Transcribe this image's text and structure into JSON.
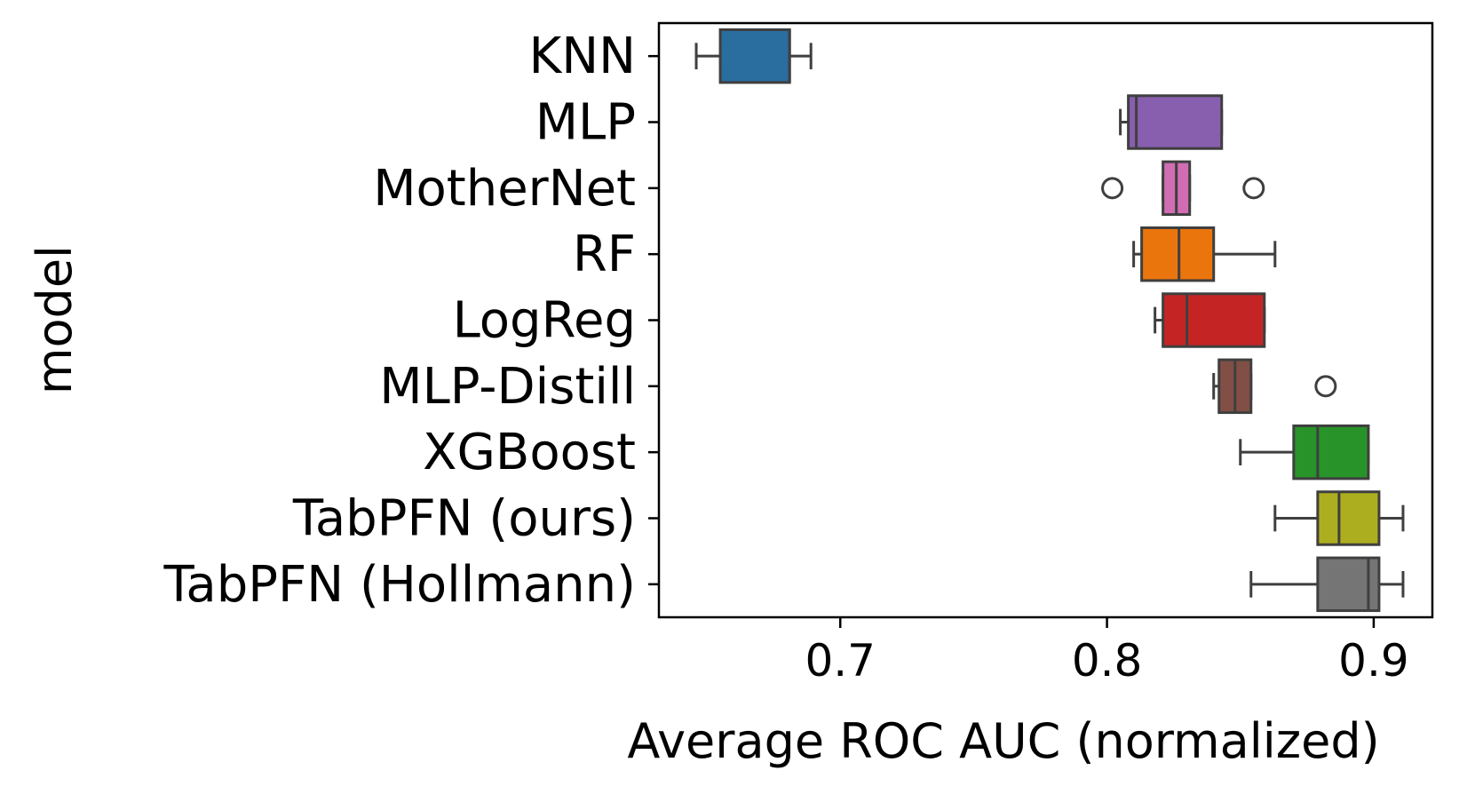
{
  "chart_data": {
    "type": "boxplot",
    "orientation": "horizontal",
    "xlabel": "Average ROC AUC (normalized)",
    "ylabel": "model",
    "xlim": [
      0.632,
      0.922
    ],
    "xticks": [
      0.7,
      0.8,
      0.9
    ],
    "xtick_labels": [
      "0.7",
      "0.8",
      "0.9"
    ],
    "grid": false,
    "categories": [
      "KNN",
      "MLP",
      "MotherNet",
      "RF",
      "LogReg",
      "MLP-Distill",
      "XGBoost",
      "TabPFN (ours)",
      "TabPFN (Hollmann)"
    ],
    "series": [
      {
        "label": "KNN",
        "color": "#2e76ad",
        "whisker_low": 0.646,
        "q1": 0.655,
        "median": 0.681,
        "q3": 0.681,
        "whisker_high": 0.689,
        "outliers": []
      },
      {
        "label": "MLP",
        "color": "#9467bd",
        "whisker_low": 0.805,
        "q1": 0.808,
        "median": 0.811,
        "q3": 0.843,
        "whisker_high": 0.843,
        "outliers": []
      },
      {
        "label": "MotherNet",
        "color": "#e377c2",
        "whisker_low": 0.821,
        "q1": 0.821,
        "median": 0.826,
        "q3": 0.831,
        "whisker_high": 0.831,
        "outliers": [
          0.802,
          0.855
        ]
      },
      {
        "label": "RF",
        "color": "#ff7f0e",
        "whisker_low": 0.81,
        "q1": 0.813,
        "median": 0.827,
        "q3": 0.84,
        "whisker_high": 0.863,
        "outliers": []
      },
      {
        "label": "LogReg",
        "color": "#d62728",
        "whisker_low": 0.818,
        "q1": 0.821,
        "median": 0.83,
        "q3": 0.859,
        "whisker_high": 0.859,
        "outliers": []
      },
      {
        "label": "MLP-Distill",
        "color": "#8c564b",
        "whisker_low": 0.84,
        "q1": 0.842,
        "median": 0.848,
        "q3": 0.854,
        "whisker_high": 0.854,
        "outliers": [
          0.882
        ]
      },
      {
        "label": "XGBoost",
        "color": "#2ca02c",
        "whisker_low": 0.85,
        "q1": 0.87,
        "median": 0.879,
        "q3": 0.898,
        "whisker_high": 0.898,
        "outliers": []
      },
      {
        "label": "TabPFN (ours)",
        "color": "#bcbd22",
        "whisker_low": 0.863,
        "q1": 0.879,
        "median": 0.887,
        "q3": 0.902,
        "whisker_high": 0.911,
        "outliers": []
      },
      {
        "label": "TabPFN (Hollmann)",
        "color": "#7f7f7f",
        "whisker_low": 0.854,
        "q1": 0.879,
        "median": 0.898,
        "q3": 0.902,
        "whisker_high": 0.911,
        "outliers": []
      }
    ]
  }
}
